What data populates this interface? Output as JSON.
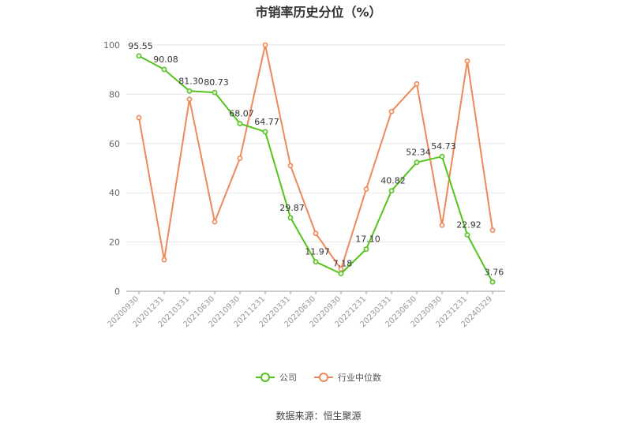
{
  "chart_data": {
    "type": "line",
    "title": "市销率历史分位（%）",
    "categories": [
      "20200930",
      "20201231",
      "20210331",
      "20210630",
      "20210930",
      "20211231",
      "20220331",
      "20220630",
      "20220930",
      "20221231",
      "20230331",
      "20230630",
      "20230930",
      "20231231",
      "20240329"
    ],
    "series": [
      {
        "name": "公司",
        "color": "#52c41a",
        "values": [
          95.55,
          90.08,
          81.3,
          80.73,
          68.07,
          64.77,
          29.87,
          11.97,
          7.18,
          17.1,
          40.82,
          52.34,
          54.73,
          22.92,
          3.76
        ],
        "labels": [
          "95.55",
          "90.08",
          "81.30",
          "80.73",
          "68.07",
          "64.77",
          "29.87",
          "11.97",
          "7.18",
          "17.10",
          "40.82",
          "52.34",
          "54.73",
          "22.92",
          "3.76"
        ]
      },
      {
        "name": "行业中位数",
        "color": "#f0875a",
        "values": [
          70.5,
          12.8,
          78.0,
          28.2,
          54.0,
          100.0,
          51.0,
          23.5,
          9.0,
          41.5,
          73.0,
          84.2,
          26.8,
          93.5,
          24.8
        ]
      }
    ],
    "y_ticks": [
      "0",
      "20",
      "40",
      "60",
      "80",
      "100"
    ],
    "ylim": [
      0,
      100
    ],
    "grid": true,
    "legend_position": "bottom"
  },
  "source": "数据来源：恒生聚源"
}
